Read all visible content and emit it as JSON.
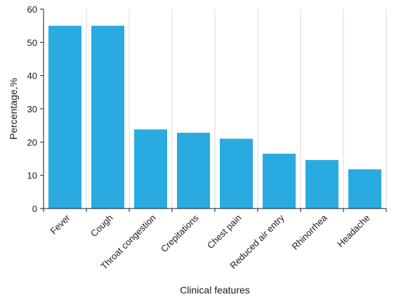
{
  "chart_data": {
    "type": "bar",
    "title": "",
    "xlabel": "Clinical features",
    "ylabel": "Percentage,%",
    "categories": [
      "Fever",
      "Cough",
      "Throat congestion",
      "Crepitations",
      "Chest pain",
      "Reduced air entry",
      "Rhinorrhea",
      "Headache"
    ],
    "values": [
      55,
      55,
      23.8,
      22.8,
      21,
      16.5,
      14.6,
      11.8
    ],
    "ylim": [
      0,
      60
    ],
    "yticks": [
      0,
      10,
      20,
      30,
      40,
      50,
      60
    ],
    "grid": "vertical",
    "bar_color": "#29abe2",
    "grid_color": "#d9d9d9",
    "axis_color": "#1a1a1a"
  }
}
